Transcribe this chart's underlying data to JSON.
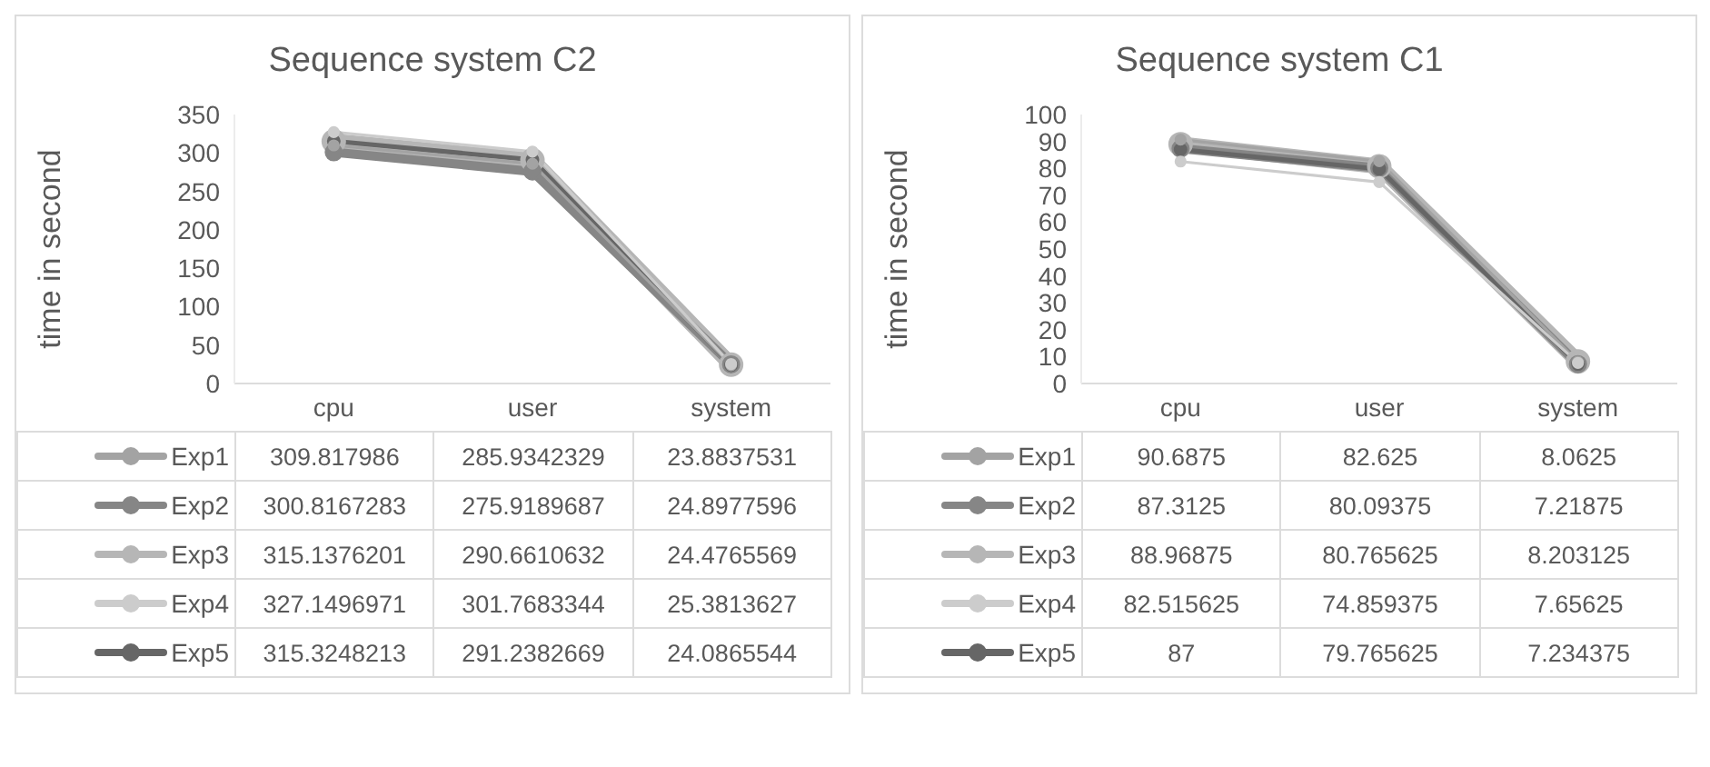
{
  "chart_data": [
    {
      "type": "line",
      "title": "Sequence system C2",
      "ylabel": "time in second",
      "categories": [
        "cpu",
        "user",
        "system"
      ],
      "ylim": [
        0,
        350
      ],
      "yticks": [
        0,
        50,
        100,
        150,
        200,
        250,
        300,
        350
      ],
      "grid": false,
      "legend": "bottom",
      "marker": "circle",
      "line_style": "solid",
      "data_labels": true,
      "series": [
        {
          "name": "Exp1",
          "color": "#a3a3a3",
          "values": [
            309.817986,
            285.9342329,
            23.8837531
          ]
        },
        {
          "name": "Exp2",
          "color": "#868686",
          "values": [
            300.8167283,
            275.9189687,
            24.8977596
          ]
        },
        {
          "name": "Exp3",
          "color": "#b6b6b6",
          "values": [
            315.1376201,
            290.6610632,
            24.4765569
          ]
        },
        {
          "name": "Exp4",
          "color": "#cccccc",
          "values": [
            327.1496971,
            301.7683344,
            25.3813627
          ]
        },
        {
          "name": "Exp5",
          "color": "#666666",
          "values": [
            315.3248213,
            291.2382669,
            24.0865544
          ]
        }
      ]
    },
    {
      "type": "line",
      "title": "Sequence system C1",
      "ylabel": "time in second",
      "categories": [
        "cpu",
        "user",
        "system"
      ],
      "ylim": [
        0,
        100
      ],
      "yticks": [
        0,
        10,
        20,
        30,
        40,
        50,
        60,
        70,
        80,
        90,
        100
      ],
      "grid": false,
      "legend": "bottom",
      "marker": "circle",
      "line_style": "solid",
      "data_labels": true,
      "series": [
        {
          "name": "Exp1",
          "color": "#a3a3a3",
          "values": [
            90.6875,
            82.625,
            8.0625
          ]
        },
        {
          "name": "Exp2",
          "color": "#868686",
          "values": [
            87.3125,
            80.09375,
            7.21875
          ]
        },
        {
          "name": "Exp3",
          "color": "#b6b6b6",
          "values": [
            88.96875,
            80.765625,
            8.203125
          ]
        },
        {
          "name": "Exp4",
          "color": "#cccccc",
          "values": [
            82.515625,
            74.859375,
            7.65625
          ]
        },
        {
          "name": "Exp5",
          "color": "#666666",
          "values": [
            87,
            79.765625,
            7.234375
          ]
        }
      ]
    }
  ]
}
